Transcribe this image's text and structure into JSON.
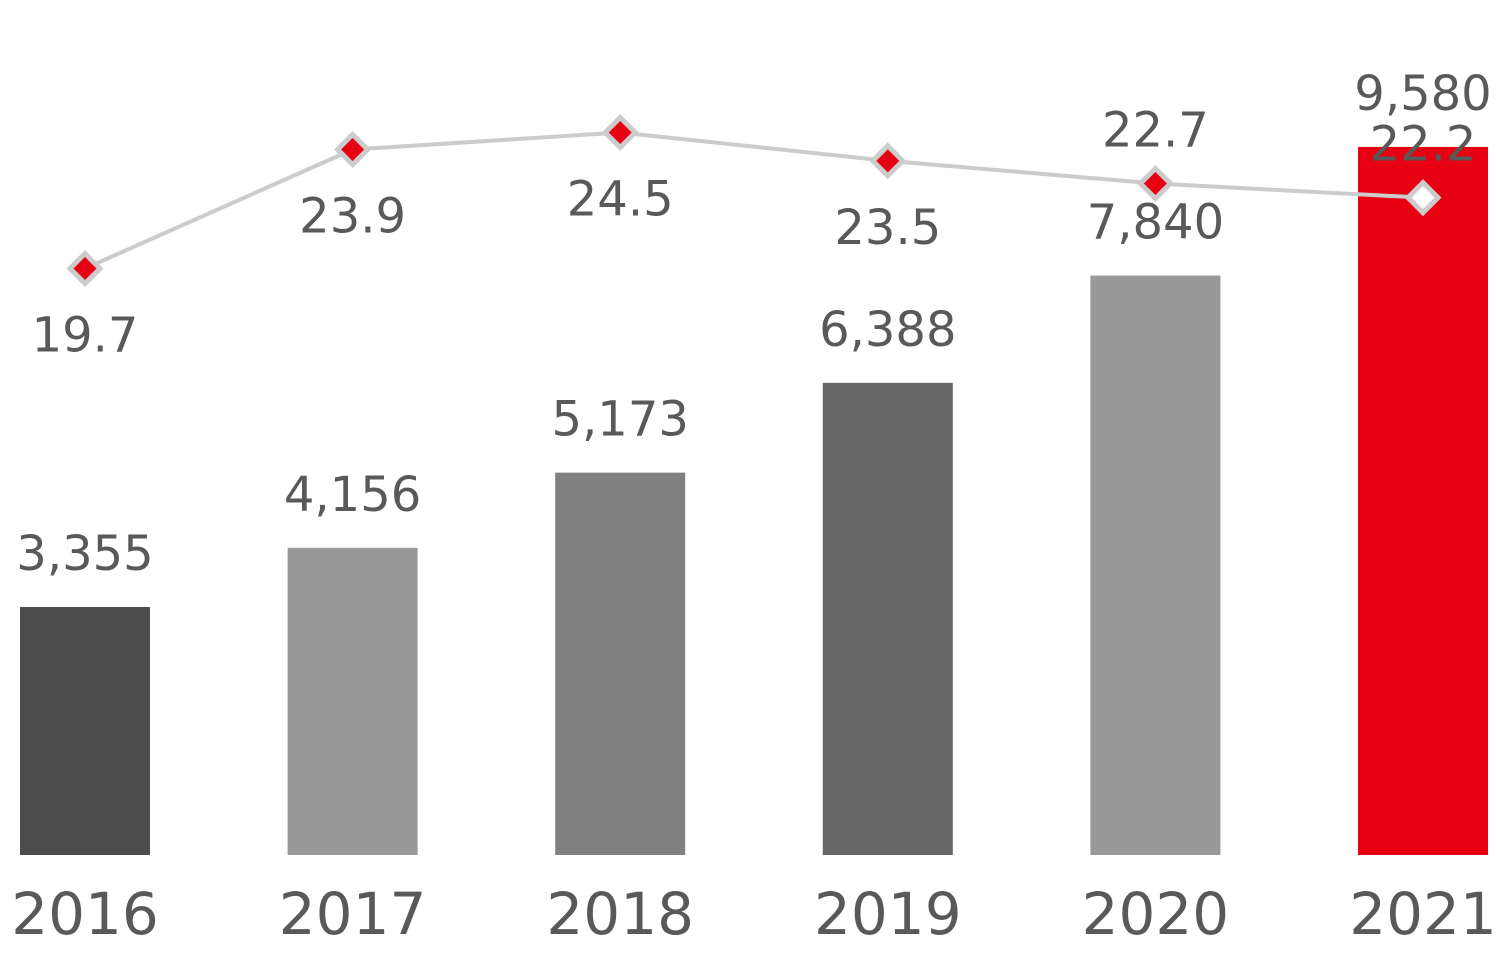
{
  "chart_data": {
    "type": "bar",
    "categories": [
      "2016",
      "2017",
      "2018",
      "2019",
      "2020",
      "2021"
    ],
    "ylim": [
      0,
      11500
    ],
    "y2lim": [
      -1,
      29
    ],
    "series": [
      {
        "type": "bar",
        "colors": [
          "#4d4d4d",
          "#999999",
          "#808080",
          "#666666",
          "#999999",
          "#e60012"
        ],
        "values": [
          3355,
          4156,
          5173,
          6388,
          7840,
          9580
        ],
        "value_labels": [
          "3,355",
          "4,156",
          "5,173",
          "6,388",
          "7,840",
          "9,580"
        ]
      },
      {
        "type": "line",
        "axis": "y2",
        "color": "#cccccc",
        "marker_fills": [
          "#e60012",
          "#e60012",
          "#e60012",
          "#e60012",
          "#e60012",
          "#ffffff"
        ],
        "label_positions": [
          "below",
          "below",
          "below",
          "below",
          "above",
          "above"
        ],
        "values": [
          19.7,
          23.9,
          24.5,
          23.5,
          22.7,
          22.2
        ]
      }
    ]
  }
}
